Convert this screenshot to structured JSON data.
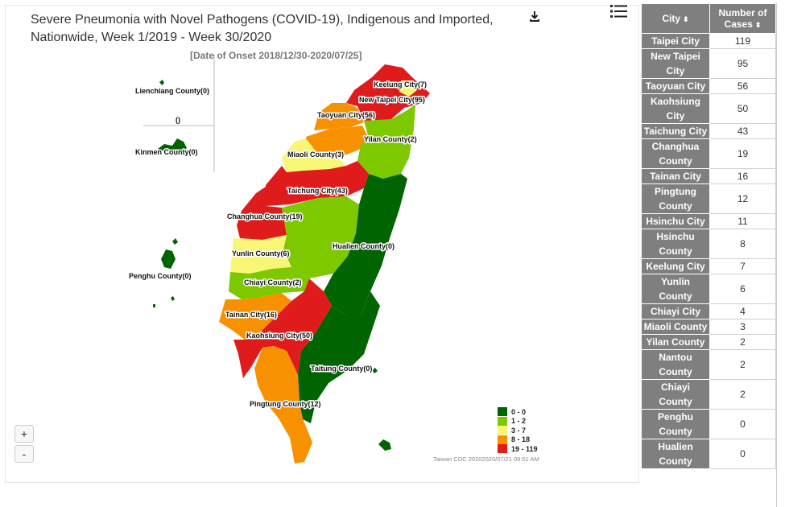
{
  "title": "Severe Pneumonia with Novel Pathogens (COVID-19), Indigenous and Imported, Nationwide, Week 1/2019 - Week 30/2020",
  "subtitle": "[Date of Onset 2018/12/30-2020/07/25]",
  "credit": "Taiwan CDC 20202020/07/21 09:51 AM",
  "icons": {
    "download": "download-icon",
    "menu": "menu-icon",
    "sort": "sort-icon"
  },
  "zoom": {
    "in": "+",
    "out": "-"
  },
  "colors": {
    "c0": "#006400",
    "c1": "#7ec800",
    "c3": "#f7f775",
    "c8": "#f79100",
    "c19": "#e01b1b"
  },
  "map_labels": {
    "lienchiang": "Lienchiang County(0)",
    "blank": "()",
    "kinmen": "Kinmen County(0)",
    "penghu": "Penghu County(0)",
    "keelung": "Keelung City(7)",
    "newtaipei": "New Taipei City(95)",
    "taoyuan": "Taoyuan City(56)",
    "yilan": "Yilan County(2)",
    "miaoli": "Miaoli County(3)",
    "taichung": "Taichung City(43)",
    "changhua": "Changhua County(19)",
    "hualien": "Hualien County(0)",
    "yunlin": "Yunlin County(6)",
    "chiayi": "Chiayi County(2)",
    "tainan": "Tainan City(16)",
    "kaohsiung": "Kaohsiung City(50)",
    "taitung": "Taitung County(0)",
    "pingtung": "Pingtung County(12)"
  },
  "legend": [
    {
      "label": "0 - 0",
      "color": "#006400"
    },
    {
      "label": "1 - 2",
      "color": "#7ec800"
    },
    {
      "label": "3 - 7",
      "color": "#f7f775"
    },
    {
      "label": "8 - 18",
      "color": "#f79100"
    },
    {
      "label": "19 - 119",
      "color": "#e01b1b"
    }
  ],
  "table": {
    "headers": {
      "city": "City",
      "cases": "Number of Cases"
    },
    "rows": [
      {
        "city": "Taipei City",
        "cases": "119"
      },
      {
        "city": "New Taipei City",
        "cases": "95"
      },
      {
        "city": "Taoyuan City",
        "cases": "56"
      },
      {
        "city": "Kaohsiung City",
        "cases": "50"
      },
      {
        "city": "Taichung City",
        "cases": "43"
      },
      {
        "city": "Changhua County",
        "cases": "19"
      },
      {
        "city": "Tainan City",
        "cases": "16"
      },
      {
        "city": "Pingtung County",
        "cases": "12"
      },
      {
        "city": "Hsinchu City",
        "cases": "11"
      },
      {
        "city": "Hsinchu County",
        "cases": "8"
      },
      {
        "city": "Keelung City",
        "cases": "7"
      },
      {
        "city": "Yunlin County",
        "cases": "6"
      },
      {
        "city": "Chiayi City",
        "cases": "4"
      },
      {
        "city": "Miaoli County",
        "cases": "3"
      },
      {
        "city": "Yilan County",
        "cases": "2"
      },
      {
        "city": "Nantou County",
        "cases": "2"
      },
      {
        "city": "Chiayi County",
        "cases": "2"
      },
      {
        "city": "Penghu County",
        "cases": "0"
      },
      {
        "city": "Hualien County",
        "cases": "0"
      }
    ]
  }
}
